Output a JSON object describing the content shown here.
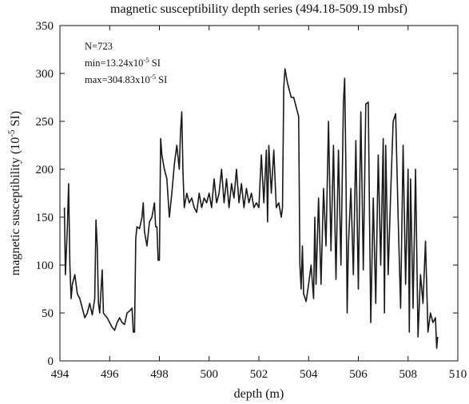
{
  "chart_data": {
    "type": "line",
    "title": "magnetic susceptibility depth series (494.18-509.19 mbsf)",
    "x_label": "depth (m)",
    "y_label": [
      "magnetic susceptibility (10",
      "-5",
      " SI)"
    ],
    "annotations": [
      [
        "N=723"
      ],
      [
        "min=13.24x10",
        "-5",
        " SI"
      ],
      [
        "max=304.83x10",
        "-5",
        " SI"
      ]
    ],
    "xlim": [
      494,
      510
    ],
    "xticks": [
      494,
      496,
      498,
      500,
      502,
      504,
      506,
      508,
      510
    ],
    "ylim": [
      0,
      350
    ],
    "yticks": [
      0,
      50,
      100,
      150,
      200,
      250,
      300,
      350
    ],
    "color": "#1a1a1a",
    "x": [
      494.18,
      494.22,
      494.3,
      494.35,
      494.4,
      494.45,
      494.5,
      494.6,
      494.7,
      494.8,
      494.9,
      495.0,
      495.1,
      495.2,
      495.3,
      495.4,
      495.45,
      495.5,
      495.55,
      495.6,
      495.7,
      495.75,
      495.8,
      495.9,
      496.0,
      496.1,
      496.2,
      496.3,
      496.4,
      496.5,
      496.6,
      496.7,
      496.8,
      496.9,
      496.95,
      497.0,
      497.05,
      497.1,
      497.2,
      497.3,
      497.35,
      497.4,
      497.5,
      497.6,
      497.7,
      497.8,
      497.85,
      497.9,
      497.95,
      498.0,
      498.05,
      498.1,
      498.2,
      498.3,
      498.4,
      498.5,
      498.6,
      498.7,
      498.8,
      498.85,
      498.9,
      498.95,
      499.0,
      499.1,
      499.2,
      499.3,
      499.4,
      499.5,
      499.6,
      499.7,
      499.8,
      499.9,
      500.0,
      500.1,
      500.2,
      500.3,
      500.4,
      500.5,
      500.6,
      500.7,
      500.8,
      500.9,
      501.0,
      501.1,
      501.2,
      501.3,
      501.4,
      501.5,
      501.6,
      501.7,
      501.8,
      501.9,
      502.0,
      502.1,
      502.2,
      502.3,
      502.35,
      502.4,
      502.5,
      502.6,
      502.7,
      502.8,
      502.9,
      502.95,
      503.0,
      503.05,
      503.15,
      503.3,
      503.4,
      503.5,
      503.6,
      503.65,
      503.7,
      503.75,
      503.8,
      503.9,
      504.0,
      504.1,
      504.2,
      504.25,
      504.3,
      504.4,
      504.5,
      504.6,
      504.7,
      504.8,
      504.9,
      505.0,
      505.1,
      505.2,
      505.3,
      505.4,
      505.45,
      505.5,
      505.55,
      505.6,
      505.7,
      505.8,
      505.9,
      506.0,
      506.1,
      506.2,
      506.3,
      506.4,
      506.45,
      506.5,
      506.6,
      506.7,
      506.8,
      506.9,
      507.0,
      507.05,
      507.1,
      507.2,
      507.3,
      507.4,
      507.5,
      507.6,
      507.7,
      507.8,
      507.9,
      508.0,
      508.05,
      508.1,
      508.2,
      508.3,
      508.4,
      508.5,
      508.6,
      508.7,
      508.8,
      508.9,
      509.0,
      509.1,
      509.15,
      509.19
    ],
    "values": [
      160,
      90,
      140,
      185,
      100,
      65,
      80,
      90,
      70,
      65,
      55,
      45,
      50,
      60,
      48,
      65,
      147,
      120,
      60,
      50,
      95,
      50,
      48,
      45,
      40,
      35,
      32,
      40,
      45,
      40,
      38,
      50,
      52,
      55,
      30,
      30,
      128,
      140,
      138,
      150,
      165,
      135,
      120,
      145,
      150,
      165,
      140,
      140,
      105,
      105,
      232,
      215,
      200,
      190,
      150,
      175,
      205,
      225,
      200,
      240,
      260,
      195,
      160,
      175,
      165,
      170,
      160,
      155,
      175,
      160,
      170,
      165,
      175,
      160,
      190,
      165,
      175,
      200,
      165,
      190,
      160,
      185,
      170,
      200,
      165,
      185,
      160,
      180,
      165,
      175,
      160,
      165,
      160,
      215,
      165,
      220,
      145,
      225,
      175,
      220,
      160,
      165,
      150,
      160,
      285,
      304.83,
      290,
      275,
      275,
      265,
      255,
      100,
      75,
      120,
      70,
      62,
      80,
      100,
      65,
      150,
      80,
      170,
      80,
      180,
      120,
      250,
      115,
      225,
      85,
      220,
      100,
      270,
      295,
      200,
      50,
      120,
      180,
      90,
      230,
      75,
      260,
      95,
      268,
      270,
      150,
      40,
      170,
      60,
      215,
      100,
      232,
      50,
      225,
      90,
      175,
      250,
      258,
      150,
      55,
      225,
      80,
      200,
      30,
      190,
      55,
      200,
      25,
      90,
      60,
      125,
      30,
      50,
      40,
      45,
      13.24,
      25
    ]
  }
}
